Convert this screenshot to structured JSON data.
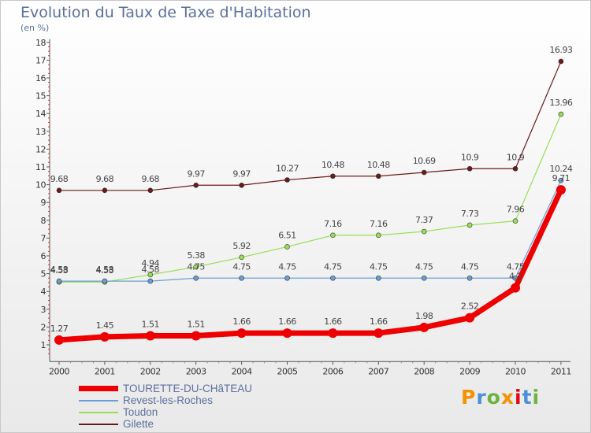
{
  "title": "Evolution du Taux de Taxe d'Habitation",
  "subtitle": "(en %)",
  "logo": {
    "text": "Proxiti",
    "colors": [
      "#f39200",
      "#4a90d9",
      "#6cb33f",
      "#f39200",
      "#e30613",
      "#4a90d9",
      "#6cb33f"
    ]
  },
  "chart_data": {
    "type": "line",
    "title": "Evolution du Taux de Taxe d'Habitation",
    "ylabel": "(en %)",
    "xlabel": "",
    "x": [
      "2000",
      "2001",
      "2002",
      "2003",
      "2004",
      "2005",
      "2006",
      "2007",
      "2008",
      "2009",
      "2010",
      "2011"
    ],
    "yticks": [
      1,
      2,
      3,
      4,
      5,
      6,
      7,
      8,
      9,
      10,
      11,
      12,
      13,
      14,
      15,
      16,
      17,
      18
    ],
    "ylim": [
      0.5,
      18
    ],
    "grid": false,
    "legend_position": "bottom-left",
    "series": [
      {
        "name": "Gilette",
        "color": "#6b1a1a",
        "width": 1.2,
        "marker": 3,
        "values": [
          9.68,
          9.68,
          9.68,
          9.97,
          9.97,
          10.27,
          10.48,
          10.48,
          10.69,
          10.9,
          10.9,
          16.93
        ],
        "labels": [
          "9.68",
          "9.68",
          "9.68",
          "9.97",
          "9.97",
          "10.27",
          "10.48",
          "10.48",
          "10.69",
          "10.9",
          "10.9",
          "16.93"
        ]
      },
      {
        "name": "Toudon",
        "color": "#99dd55",
        "width": 1.2,
        "marker": 3,
        "values": [
          4.53,
          4.53,
          4.94,
          5.38,
          5.92,
          6.51,
          7.16,
          7.16,
          7.37,
          7.73,
          7.96,
          13.96
        ],
        "labels": [
          "4.53",
          "4.53",
          "4.94",
          "5.38",
          "5.92",
          "6.51",
          "7.16",
          "7.16",
          "7.37",
          "7.73",
          "7.96",
          "13.96"
        ]
      },
      {
        "name": "Revest-les-Roches",
        "color": "#6a9fd4",
        "width": 1.2,
        "marker": 3,
        "values": [
          4.58,
          4.58,
          4.58,
          4.75,
          4.75,
          4.75,
          4.75,
          4.75,
          4.75,
          4.75,
          4.75,
          10.24
        ],
        "labels": [
          "4.58",
          "4.58",
          "4.58",
          "4.75",
          "4.75",
          "4.75",
          "4.75",
          "4.75",
          "4.75",
          "4.75",
          "4.75",
          "10.24"
        ]
      },
      {
        "name": "TOURETTE-DU-CHâTEAU",
        "color": "#ee0000",
        "width": 7,
        "marker": 6,
        "values": [
          1.27,
          1.45,
          1.51,
          1.51,
          1.66,
          1.66,
          1.66,
          1.66,
          1.98,
          2.52,
          4.2,
          9.71
        ],
        "labels": [
          "1.27",
          "1.45",
          "1.51",
          "1.51",
          "1.66",
          "1.66",
          "1.66",
          "1.66",
          "1.98",
          "2.52",
          "4.2",
          "9.71"
        ]
      }
    ]
  },
  "legend": [
    {
      "label": "TOURETTE-DU-CHâTEAU",
      "color": "#ee0000",
      "thickness": 7
    },
    {
      "label": "Revest-les-Roches",
      "color": "#6a9fd4",
      "thickness": 2
    },
    {
      "label": "Toudon",
      "color": "#99dd55",
      "thickness": 2
    },
    {
      "label": "Gilette",
      "color": "#6b1a1a",
      "thickness": 2
    }
  ]
}
